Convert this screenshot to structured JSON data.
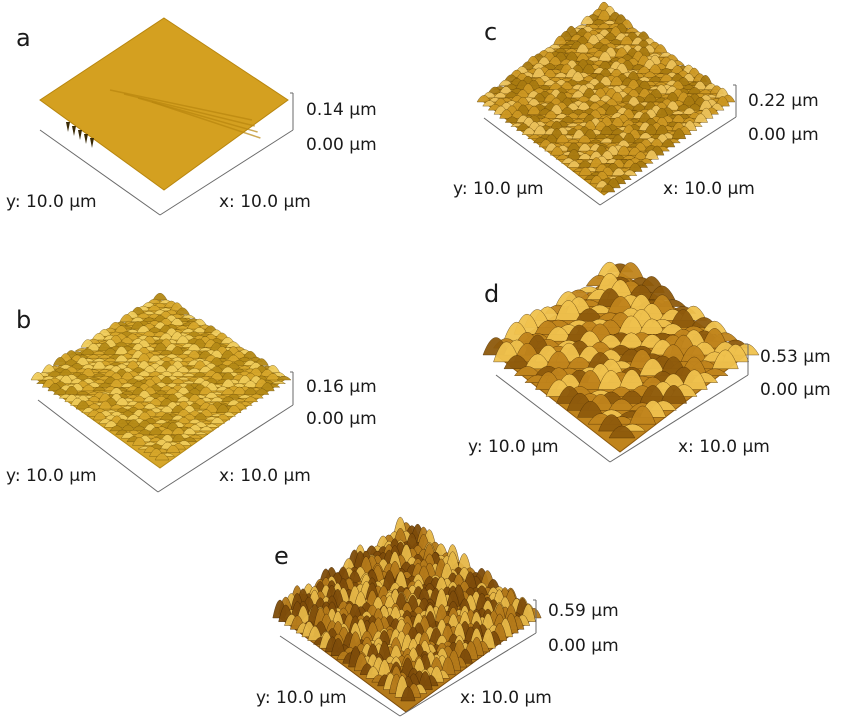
{
  "panels": [
    {
      "letter": "a",
      "z_max": "0.14 µm",
      "z_min": "0.00 µm",
      "y_label": "y: 10.0 µm",
      "x_label": "x: 10.0 µm",
      "amplitude": 0.14,
      "palette": [
        "#7a5a08",
        "#b8860e",
        "#d4a020",
        "#e8bc44"
      ],
      "texture": "smooth-with-scratches"
    },
    {
      "letter": "b",
      "z_max": "0.16 µm",
      "z_min": "0.00 µm",
      "y_label": "y: 10.0 µm",
      "x_label": "x: 10.0 µm",
      "amplitude": 0.16,
      "palette": [
        "#6e5006",
        "#b58a16",
        "#d6a62a",
        "#f0cc5a"
      ],
      "texture": "fine-peaks"
    },
    {
      "letter": "c",
      "z_max": "0.22 µm",
      "z_min": "0.00 µm",
      "y_label": "y: 10.0 µm",
      "x_label": "x: 10.0 µm",
      "amplitude": 0.22,
      "palette": [
        "#5e4004",
        "#a87a10",
        "#cc9722",
        "#ecc25a"
      ],
      "texture": "fine-peaks"
    },
    {
      "letter": "d",
      "z_max": "0.53 µm",
      "z_min": "0.00 µm",
      "y_label": "y: 10.0 µm",
      "x_label": "x: 10.0 µm",
      "amplitude": 0.53,
      "palette": [
        "#4a2c02",
        "#8e5a0c",
        "#c0841c",
        "#f0c24e"
      ],
      "texture": "coarse-hills"
    },
    {
      "letter": "e",
      "z_max": "0.59 µm",
      "z_min": "0.00 µm",
      "y_label": "y: 10.0 µm",
      "x_label": "x: 10.0 µm",
      "amplitude": 0.59,
      "palette": [
        "#3e2202",
        "#7e4c0a",
        "#b47a1a",
        "#e6b848"
      ],
      "texture": "dense-spikes"
    }
  ]
}
